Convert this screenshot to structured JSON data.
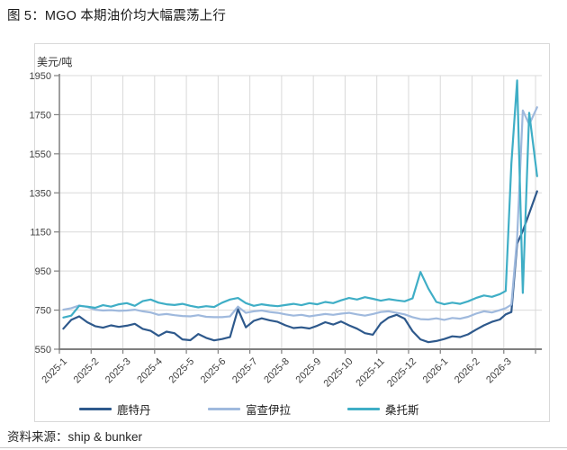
{
  "page": {
    "title": "图 5：MGO 本期油价均大幅震荡上行",
    "source": "资料来源：ship & bunker"
  },
  "colors": {
    "grid": "#d9d9d9",
    "axis": "#7f7f7f",
    "tick_text": "#404040",
    "frame_border": "#d9d9d9"
  },
  "chart_data": {
    "type": "line",
    "title": "图 5：MGO 本期油价均大幅震荡上行",
    "ylabel": "美元/吨",
    "xlabel": "",
    "ylim": [
      550,
      1950
    ],
    "yticks": [
      550,
      750,
      950,
      1150,
      1350,
      1550,
      1750,
      1950
    ],
    "grid": true,
    "legend_position": "bottom",
    "categories": [
      "2025-1",
      "2025-2",
      "2025-3",
      "2025-4",
      "2025-5",
      "2025-6",
      "2025-7",
      "2025-8",
      "2025-9",
      "2025-10",
      "2025-11",
      "2025-12",
      "2026-1",
      "2026-2",
      "2026-3"
    ],
    "x_months": [
      0.125,
      0.375,
      0.625,
      0.875,
      1.125,
      1.375,
      1.625,
      1.875,
      2.125,
      2.375,
      2.625,
      2.875,
      3.125,
      3.375,
      3.625,
      3.875,
      4.125,
      4.375,
      4.625,
      4.875,
      5.125,
      5.375,
      5.625,
      5.875,
      6.125,
      6.375,
      6.625,
      6.875,
      7.125,
      7.375,
      7.625,
      7.875,
      8.125,
      8.375,
      8.625,
      8.875,
      9.125,
      9.375,
      9.625,
      9.875,
      10.125,
      10.375,
      10.625,
      10.875,
      11.125,
      11.375,
      11.625,
      11.875,
      12.125,
      12.375,
      12.625,
      12.875,
      13.125,
      13.375,
      13.625,
      13.875,
      14.06,
      14.24,
      14.42,
      14.6,
      14.8,
      15.05
    ],
    "series": [
      {
        "name": "鹿特丹",
        "color": "#2e598c",
        "values": [
          655,
          700,
          718,
          688,
          668,
          660,
          672,
          664,
          670,
          680,
          654,
          644,
          618,
          640,
          632,
          600,
          596,
          628,
          608,
          595,
          602,
          612,
          755,
          662,
          695,
          708,
          698,
          690,
          672,
          658,
          662,
          656,
          670,
          688,
          676,
          692,
          672,
          655,
          632,
          624,
          682,
          712,
          726,
          706,
          642,
          600,
          586,
          592,
          602,
          616,
          612,
          626,
          650,
          672,
          690,
          702,
          728,
          740,
          1090,
          1155,
          1245,
          1358
        ]
      },
      {
        "name": "富查伊拉",
        "color": "#9fb9dd",
        "values": [
          752,
          760,
          774,
          766,
          752,
          748,
          750,
          746,
          748,
          752,
          744,
          738,
          726,
          730,
          724,
          720,
          718,
          724,
          716,
          714,
          714,
          718,
          768,
          736,
          744,
          748,
          740,
          736,
          728,
          722,
          726,
          718,
          724,
          730,
          726,
          732,
          736,
          728,
          722,
          730,
          740,
          744,
          736,
          728,
          714,
          704,
          702,
          708,
          700,
          710,
          706,
          716,
          732,
          744,
          738,
          750,
          760,
          778,
          1120,
          1772,
          1700,
          1788
        ]
      },
      {
        "name": "桑托斯",
        "color": "#3faec6",
        "values": [
          712,
          722,
          772,
          768,
          762,
          775,
          768,
          780,
          786,
          772,
          796,
          804,
          788,
          780,
          776,
          782,
          772,
          764,
          770,
          766,
          788,
          804,
          812,
          786,
          772,
          780,
          774,
          770,
          776,
          782,
          775,
          786,
          780,
          792,
          786,
          800,
          812,
          804,
          816,
          808,
          798,
          806,
          800,
          795,
          810,
          945,
          860,
          792,
          780,
          788,
          782,
          795,
          812,
          825,
          818,
          832,
          848,
          1500,
          1925,
          838,
          1760,
          1435
        ]
      }
    ]
  }
}
